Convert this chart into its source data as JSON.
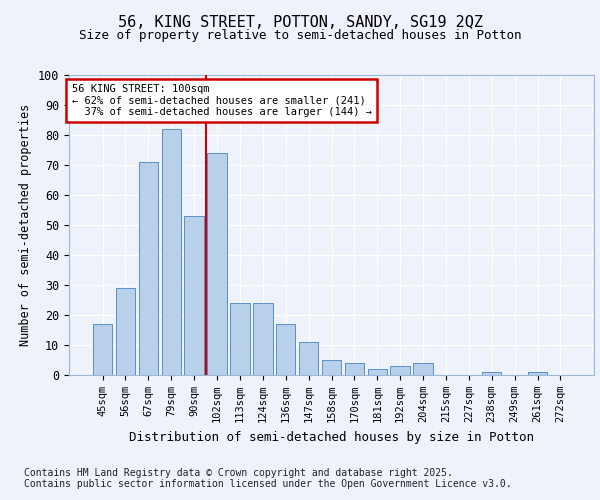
{
  "title1": "56, KING STREET, POTTON, SANDY, SG19 2QZ",
  "title2": "Size of property relative to semi-detached houses in Potton",
  "xlabel": "Distribution of semi-detached houses by size in Potton",
  "ylabel": "Number of semi-detached properties",
  "categories": [
    "45sqm",
    "56sqm",
    "67sqm",
    "79sqm",
    "90sqm",
    "102sqm",
    "113sqm",
    "124sqm",
    "136sqm",
    "147sqm",
    "158sqm",
    "170sqm",
    "181sqm",
    "192sqm",
    "204sqm",
    "215sqm",
    "227sqm",
    "238sqm",
    "249sqm",
    "261sqm",
    "272sqm"
  ],
  "values": [
    17,
    29,
    71,
    82,
    53,
    74,
    24,
    24,
    17,
    11,
    5,
    4,
    2,
    3,
    4,
    0,
    0,
    1,
    0,
    1,
    0
  ],
  "bar_color": "#b8d0ea",
  "bar_edge_color": "#5b8fc9",
  "highlight_index": 5,
  "highlight_line_color": "#cc0000",
  "annotation_line1": "56 KING STREET: 100sqm",
  "annotation_line2": "← 62% of semi-detached houses are smaller (241)",
  "annotation_line3": "  37% of semi-detached houses are larger (144) →",
  "annotation_box_color": "#cc0000",
  "ylim": [
    0,
    100
  ],
  "yticks": [
    0,
    10,
    20,
    30,
    40,
    50,
    60,
    70,
    80,
    90,
    100
  ],
  "footer1": "Contains HM Land Registry data © Crown copyright and database right 2025.",
  "footer2": "Contains public sector information licensed under the Open Government Licence v3.0.",
  "bg_color": "#eef2fb",
  "grid_color": "#ffffff"
}
